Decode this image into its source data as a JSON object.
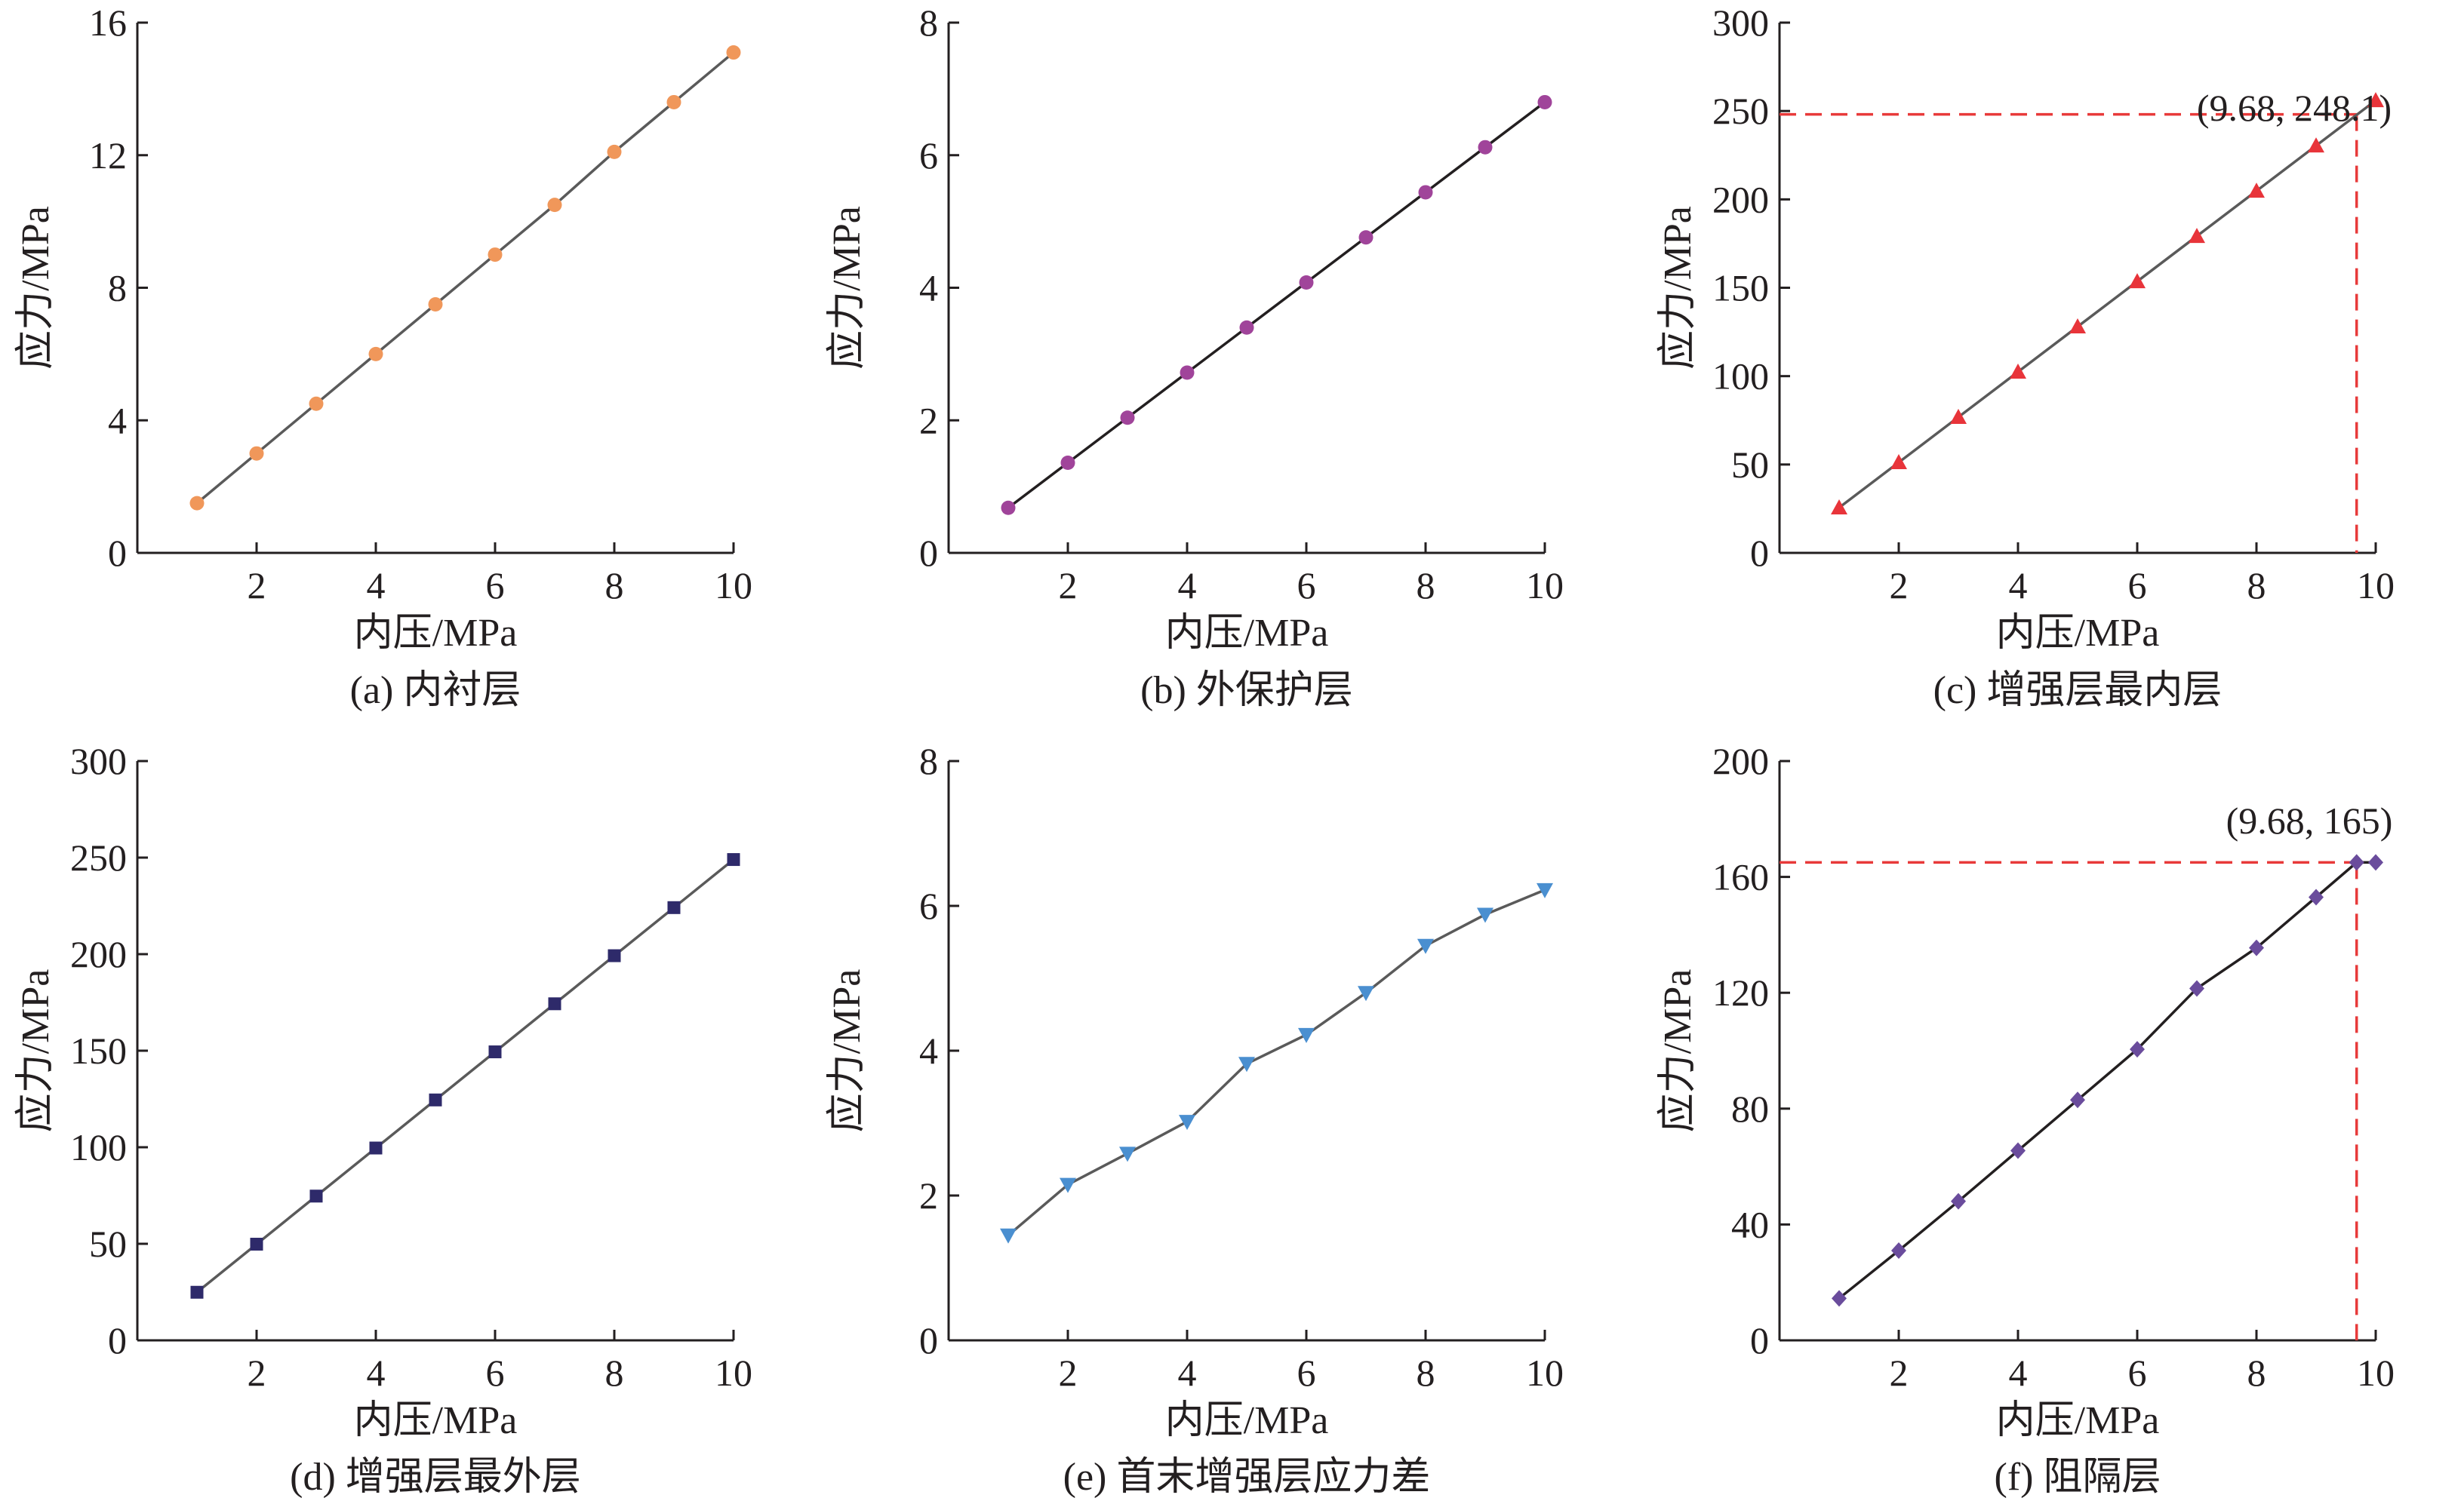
{
  "figure": {
    "background": "#ffffff",
    "text_color": "#231f20",
    "reference_line_color": "#e83a3a"
  },
  "chart_data": [
    {
      "id": "a",
      "type": "line",
      "caption": "(a) 内衬层",
      "xlabel": "内压/MPa",
      "ylabel": "应力/MPa",
      "xlim": [
        0,
        10
      ],
      "ylim": [
        0,
        16
      ],
      "x_ticks": [
        2,
        4,
        6,
        8,
        10
      ],
      "y_ticks": [
        0,
        4,
        8,
        12,
        16
      ],
      "marker": "circle",
      "line_color": "#5a5a5a",
      "marker_color": "#f0975a",
      "series": [
        {
          "x": [
            1,
            2,
            3,
            4,
            5,
            6,
            7,
            8,
            9,
            10
          ],
          "y": [
            1.5,
            3.0,
            4.5,
            6.0,
            7.5,
            9.0,
            10.5,
            12.1,
            13.6,
            15.1
          ]
        }
      ]
    },
    {
      "id": "b",
      "type": "line",
      "caption": "(b) 外保护层",
      "xlabel": "内压/MPa",
      "ylabel": "应力/MPa",
      "xlim": [
        0,
        10
      ],
      "ylim": [
        0,
        8
      ],
      "x_ticks": [
        2,
        4,
        6,
        8,
        10
      ],
      "y_ticks": [
        0,
        2,
        4,
        6,
        8
      ],
      "marker": "circle",
      "line_color": "#231f20",
      "marker_color": "#a0449a",
      "series": [
        {
          "x": [
            1,
            2,
            3,
            4,
            5,
            6,
            7,
            8,
            9,
            10
          ],
          "y": [
            0.68,
            1.36,
            2.04,
            2.72,
            3.4,
            4.08,
            4.76,
            5.44,
            6.12,
            6.8
          ]
        }
      ]
    },
    {
      "id": "c",
      "type": "line",
      "caption": "(c) 增强层最内层",
      "xlabel": "内压/MPa",
      "ylabel": "应力/MPa",
      "xlim": [
        0,
        10
      ],
      "ylim": [
        0,
        300
      ],
      "x_ticks": [
        2,
        4,
        6,
        8,
        10
      ],
      "y_ticks": [
        0,
        50,
        100,
        150,
        200,
        250,
        300
      ],
      "marker": "triangle-up",
      "line_color": "#5a5a5a",
      "marker_color": "#e8343a",
      "series": [
        {
          "x": [
            1,
            2,
            3,
            4,
            5,
            6,
            7,
            8,
            9,
            10
          ],
          "y": [
            25.6,
            51.2,
            76.8,
            102.4,
            128.0,
            153.6,
            179.2,
            204.8,
            230.4,
            256.0
          ]
        }
      ],
      "reference": {
        "x": 9.68,
        "y": 248.1
      },
      "annotation": "(9.68, 248.1)"
    },
    {
      "id": "d",
      "type": "line",
      "caption": "(d) 增强层最外层",
      "xlabel": "内压/MPa",
      "ylabel": "应力/MPa",
      "xlim": [
        0,
        10
      ],
      "ylim": [
        0,
        300
      ],
      "x_ticks": [
        2,
        4,
        6,
        8,
        10
      ],
      "y_ticks": [
        0,
        50,
        100,
        150,
        200,
        250,
        300
      ],
      "marker": "square",
      "line_color": "#5a5a5a",
      "marker_color": "#2e2a6a",
      "series": [
        {
          "x": [
            1,
            2,
            3,
            4,
            5,
            6,
            7,
            8,
            9,
            10
          ],
          "y": [
            24.9,
            49.8,
            74.7,
            99.6,
            124.5,
            149.4,
            174.3,
            199.2,
            224.1,
            249.0
          ]
        }
      ]
    },
    {
      "id": "e",
      "type": "line",
      "caption": "(e) 首末增强层应力差",
      "xlabel": "内压/MPa",
      "ylabel": "应力/MPa",
      "xlim": [
        0,
        10
      ],
      "ylim": [
        0,
        8
      ],
      "x_ticks": [
        2,
        4,
        6,
        8,
        10
      ],
      "y_ticks": [
        0,
        2,
        4,
        6,
        8
      ],
      "marker": "triangle-down",
      "line_color": "#5a5a5a",
      "marker_color": "#4a8fd0",
      "series": [
        {
          "x": [
            1,
            2,
            3,
            4,
            5,
            6,
            7,
            8,
            9,
            10
          ],
          "y": [
            1.45,
            2.15,
            2.58,
            3.02,
            3.82,
            4.22,
            4.8,
            5.45,
            5.88,
            6.22
          ]
        }
      ]
    },
    {
      "id": "f",
      "type": "line",
      "caption": "(f) 阻隔层",
      "xlabel": "内压/MPa",
      "ylabel": "应力/MPa",
      "xlim": [
        0,
        10
      ],
      "ylim": [
        0,
        200
      ],
      "x_ticks": [
        2,
        4,
        6,
        8,
        10
      ],
      "y_ticks": [
        0,
        40,
        80,
        120,
        160,
        200
      ],
      "marker": "diamond",
      "line_color": "#231f20",
      "marker_color": "#6a4c9c",
      "series": [
        {
          "x": [
            1,
            2,
            3,
            4,
            5,
            6,
            7,
            8,
            9,
            9.68,
            10
          ],
          "y": [
            14.5,
            31.0,
            48.0,
            65.5,
            83.0,
            100.5,
            121.5,
            135.5,
            153.0,
            165.0,
            165.0
          ]
        }
      ],
      "reference": {
        "x": 9.68,
        "y": 165
      },
      "annotation": "(9.68, 165)"
    }
  ]
}
